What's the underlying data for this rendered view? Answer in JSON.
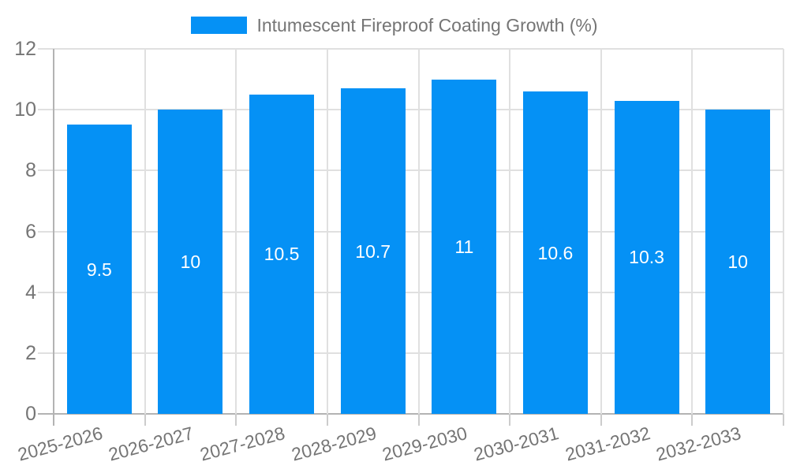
{
  "chart_data": {
    "type": "bar",
    "legend": "Intumescent Fireproof Coating Growth (%)",
    "legend_position": "top-center",
    "categories": [
      "2025-2026",
      "2026-2027",
      "2027-2028",
      "2028-2029",
      "2029-2030",
      "2030-2031",
      "2031-2032",
      "2032-2033"
    ],
    "values": [
      9.5,
      10,
      10.5,
      10.7,
      11,
      10.6,
      10.3,
      10
    ],
    "value_labels": [
      "9.5",
      "10",
      "10.5",
      "10.7",
      "11",
      "10.6",
      "10.3",
      "10"
    ],
    "xlabel": "",
    "ylabel": "",
    "ylim": [
      0,
      12
    ],
    "yticks": [
      0,
      2,
      4,
      6,
      8,
      10,
      12
    ],
    "grid": true,
    "x_label_rotation": -15,
    "bar_color": "#0591f5",
    "bar_label_color": "#ffffff",
    "text_color": "#757575",
    "grid_color": "#e0e0e0",
    "axis_color": "#b3b3b3",
    "tick_color": "#cccccc"
  }
}
